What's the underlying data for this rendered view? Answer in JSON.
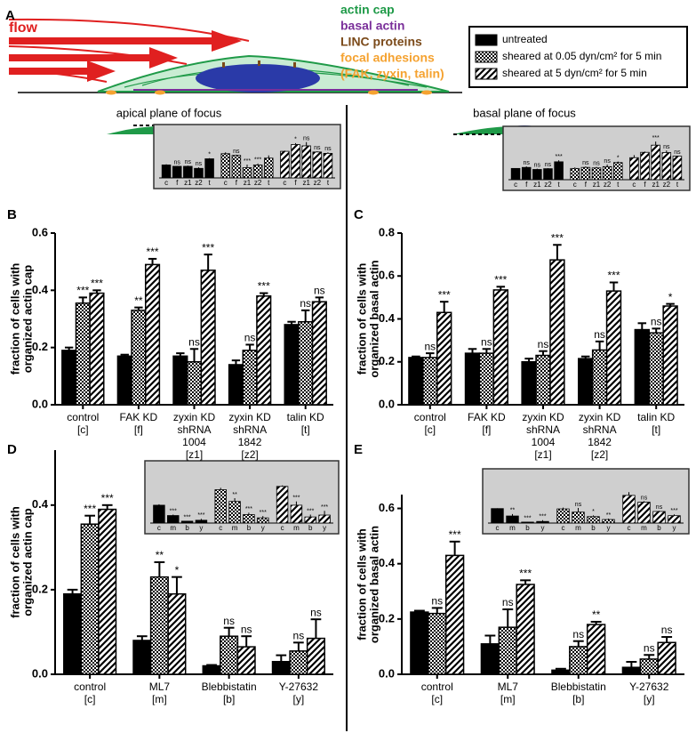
{
  "panel_a": {
    "label": "A",
    "flow": "flow",
    "components": [
      {
        "text": "actin cap",
        "color": "#1f9a48"
      },
      {
        "text": "basal actin",
        "color": "#7a2f9a"
      },
      {
        "text": "LINC proteins",
        "color": "#7b4a1a"
      },
      {
        "text": "focal adhesions",
        "color": "#f5a230"
      },
      {
        "text": "(FAK, zyxin, talin)",
        "color": "#f5a230"
      }
    ]
  },
  "headings": [
    "apical plane of focus",
    "basal plane of focus"
  ],
  "chart_data": [
    {
      "type": "bar",
      "panel_label": "B",
      "ylabel": [
        "fraction of cells with",
        "organized actin cap"
      ],
      "categories": [
        [
          "control",
          "[c]"
        ],
        [
          "FAK KD",
          "[f]"
        ],
        [
          "zyxin KD",
          "shRNA",
          "1004",
          "[z1]"
        ],
        [
          "zyxin KD",
          "shRNA",
          "1842",
          "[z2]"
        ],
        [
          "talin KD",
          "[t]"
        ]
      ],
      "ylim": [
        0,
        0.6
      ],
      "yticks": [
        {
          "value": 0,
          "label": "0.0"
        },
        0.2,
        0.4,
        0.6
      ],
      "series": [
        {
          "name": "untreated",
          "color": "#000000",
          "pattern": "solid",
          "values": [
            0.19,
            0.17,
            0.17,
            0.14,
            0.28
          ],
          "errors": [
            0.01,
            0.005,
            0.01,
            0.015,
            0.01
          ]
        },
        {
          "name": "sheared at 0.05 dyn/cm² for 5 min",
          "color": "#000000",
          "pattern": "checker",
          "values": [
            0.355,
            0.33,
            0.15,
            0.19,
            0.29
          ],
          "errors": [
            0.02,
            0.01,
            0.045,
            0.02,
            0.04
          ],
          "annotations": [
            "***",
            "**",
            "ns",
            "ns",
            "ns"
          ]
        },
        {
          "name": "sheared at 5 dyn/cm² for 5 min",
          "color": "#000000",
          "pattern": "hatch",
          "values": [
            0.39,
            0.49,
            0.47,
            0.38,
            0.36
          ],
          "errors": [
            0.01,
            0.02,
            0.055,
            0.01,
            0.015
          ],
          "annotations": [
            "***",
            "***",
            "***",
            "***",
            "ns"
          ]
        }
      ],
      "inset": {
        "categories": [
          "c",
          "f",
          "z1",
          "z2",
          "t"
        ],
        "annotations": [
          [
            null,
            "ns",
            "ns",
            "ns",
            "*"
          ],
          [
            null,
            "ns",
            "***",
            "***",
            null
          ],
          [
            null,
            "*",
            "ns",
            "ns",
            "ns"
          ]
        ]
      }
    },
    {
      "type": "bar",
      "panel_label": "C",
      "ylabel": [
        "fraction of cells with",
        "organized basal actin"
      ],
      "categories": [
        [
          "control",
          "[c]"
        ],
        [
          "FAK KD",
          "[f]"
        ],
        [
          "zyxin KD",
          "shRNA",
          "1004",
          "[z1]"
        ],
        [
          "zyxin KD",
          "shRNA",
          "1842",
          "[z2]"
        ],
        [
          "talin KD",
          "[t]"
        ]
      ],
      "ylim": [
        0,
        0.8
      ],
      "yticks": [
        {
          "value": 0,
          "label": "0.0"
        },
        0.2,
        0.4,
        0.6,
        0.8
      ],
      "series": [
        {
          "color": "#000000",
          "pattern": "solid",
          "values": [
            0.22,
            0.24,
            0.2,
            0.215,
            0.35
          ],
          "errors": [
            0.005,
            0.02,
            0.015,
            0.01,
            0.03
          ]
        },
        {
          "color": "#000000",
          "pattern": "checker",
          "values": [
            0.22,
            0.24,
            0.23,
            0.255,
            0.335
          ],
          "errors": [
            0.02,
            0.02,
            0.02,
            0.04,
            0.02
          ],
          "annotations": [
            "ns",
            "ns",
            "ns",
            "ns",
            "ns"
          ]
        },
        {
          "color": "#000000",
          "pattern": "hatch",
          "values": [
            0.43,
            0.535,
            0.675,
            0.53,
            0.46
          ],
          "errors": [
            0.05,
            0.015,
            0.07,
            0.04,
            0.01
          ],
          "annotations": [
            "***",
            "***",
            "***",
            "***",
            "*"
          ]
        }
      ],
      "inset": {
        "categories": [
          "c",
          "f",
          "z1",
          "z2",
          "t"
        ],
        "annotations": [
          [
            null,
            "ns",
            "ns",
            "ns",
            "***"
          ],
          [
            null,
            "ns",
            "ns",
            "ns",
            "*"
          ],
          [
            null,
            null,
            "***",
            "ns",
            "ns"
          ]
        ]
      }
    },
    {
      "type": "bar",
      "panel_label": "D",
      "ylabel": [
        "fraction of cells with",
        "organized actin cap"
      ],
      "categories": [
        [
          "control",
          "[c]"
        ],
        [
          "ML7",
          "[m]"
        ],
        [
          "Blebbistatin",
          "[b]"
        ],
        [
          "Y-27632",
          "[y]"
        ]
      ],
      "ylim": [
        0,
        0.53
      ],
      "yticks": [
        {
          "value": 0,
          "label": "0.0"
        },
        0.2,
        0.4
      ],
      "series": [
        {
          "color": "#000000",
          "pattern": "solid",
          "values": [
            0.19,
            0.08,
            0.02,
            0.03
          ],
          "errors": [
            0.01,
            0.01,
            0.002,
            0.015
          ]
        },
        {
          "color": "#000000",
          "pattern": "checker",
          "values": [
            0.355,
            0.23,
            0.09,
            0.055
          ],
          "errors": [
            0.02,
            0.035,
            0.02,
            0.02
          ],
          "annotations": [
            "***",
            "**",
            "ns",
            "ns"
          ]
        },
        {
          "color": "#000000",
          "pattern": "hatch",
          "values": [
            0.39,
            0.19,
            0.065,
            0.085
          ],
          "errors": [
            0.01,
            0.04,
            0.025,
            0.045
          ],
          "annotations": [
            "***",
            "*",
            "ns",
            "ns"
          ]
        }
      ],
      "inset": {
        "categories": [
          "c",
          "m",
          "b",
          "y"
        ],
        "annotations": [
          [
            null,
            "***",
            "***",
            "***"
          ],
          [
            null,
            "**",
            "***",
            "***"
          ],
          [
            null,
            "***",
            "***",
            "***"
          ]
        ]
      }
    },
    {
      "type": "bar",
      "panel_label": "E",
      "ylabel": [
        "fraction of cells with",
        "organized basal actin"
      ],
      "categories": [
        [
          "control",
          "[c]"
        ],
        [
          "ML7",
          "[m]"
        ],
        [
          "Blebbistatin",
          "[b]"
        ],
        [
          "Y-27632",
          "[y]"
        ]
      ],
      "ylim": [
        0,
        0.65
      ],
      "yticks": [
        {
          "value": 0,
          "label": "0.0"
        },
        0.2,
        0.4,
        0.6
      ],
      "series": [
        {
          "color": "#000000",
          "pattern": "solid",
          "values": [
            0.225,
            0.11,
            0.015,
            0.025
          ],
          "errors": [
            0.005,
            0.03,
            0.005,
            0.02
          ]
        },
        {
          "color": "#000000",
          "pattern": "checker",
          "values": [
            0.22,
            0.17,
            0.1,
            0.055
          ],
          "errors": [
            0.02,
            0.065,
            0.02,
            0.015
          ],
          "annotations": [
            "ns",
            "ns",
            "ns",
            "ns"
          ]
        },
        {
          "color": "#000000",
          "pattern": "hatch",
          "values": [
            0.43,
            0.325,
            0.18,
            0.115
          ],
          "errors": [
            0.05,
            0.015,
            0.01,
            0.02
          ],
          "annotations": [
            "***",
            "***",
            "**",
            "ns"
          ]
        }
      ],
      "inset": {
        "categories": [
          "c",
          "m",
          "b",
          "y"
        ],
        "annotations": [
          [
            null,
            "**",
            "***",
            "***"
          ],
          [
            null,
            "ns",
            "*",
            "**"
          ],
          [
            null,
            "ns",
            "ns",
            "***"
          ]
        ]
      }
    }
  ]
}
